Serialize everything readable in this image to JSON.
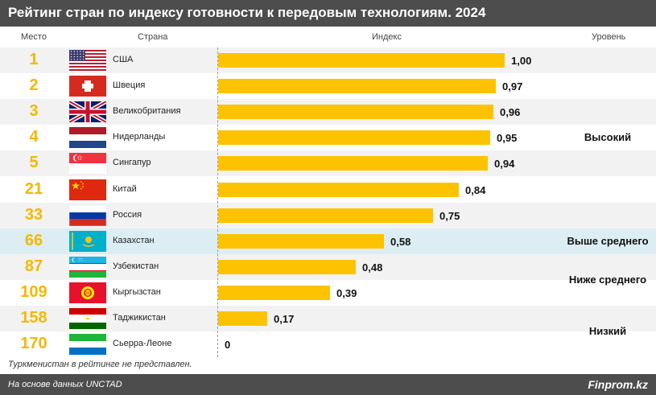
{
  "title": "Рейтинг стран по индексу готовности к передовым технологиям. 2024",
  "headers": {
    "rank": "Место",
    "country": "Страна",
    "index": "Индекс",
    "level": "Уровень"
  },
  "chart_data": {
    "type": "bar",
    "orientation": "horizontal",
    "categories": [
      "США",
      "Швеция",
      "Великобритания",
      "Нидерланды",
      "Сингапур",
      "Китай",
      "Россия",
      "Казахстан",
      "Узбекистан",
      "Кыргызстан",
      "Таджикистан",
      "Сьерра-Леоне"
    ],
    "ranks": [
      "1",
      "2",
      "3",
      "4",
      "5",
      "21",
      "33",
      "66",
      "87",
      "109",
      "158",
      "170"
    ],
    "values": [
      1.0,
      0.97,
      0.96,
      0.95,
      0.94,
      0.84,
      0.75,
      0.58,
      0.48,
      0.39,
      0.17,
      0
    ],
    "value_labels": [
      "1,00",
      "0,97",
      "0,96",
      "0,95",
      "0,94",
      "0,84",
      "0,75",
      "0,58",
      "0,48",
      "0,39",
      "0,17",
      "0"
    ],
    "xlim": [
      0,
      1
    ],
    "highlight": "Казахстан",
    "bar_color": "#fdc300",
    "rank_color": "#f5b800",
    "highlight_color": "#dceef4",
    "levels": [
      {
        "label": "Высокий",
        "rows": [
          0,
          6
        ]
      },
      {
        "label": "Выше среднего",
        "rows": [
          7,
          7
        ]
      },
      {
        "label": "Ниже среднего",
        "rows": [
          8,
          9
        ]
      },
      {
        "label": "Низкий",
        "rows": [
          10,
          11
        ]
      }
    ],
    "flags": [
      "us-flag",
      "sweden-flag",
      "uk-flag",
      "netherlands-flag",
      "singapore-flag",
      "china-flag",
      "russia-flag",
      "kazakhstan-flag",
      "uzbekistan-flag",
      "kyrgyzstan-flag",
      "tajikistan-flag",
      "sierra-leone-flag"
    ]
  },
  "footnote": "Туркменистан в рейтинге не представлен.",
  "footer": {
    "source": "На основе данных UNCTAD",
    "brand": "Finprom.kz"
  }
}
